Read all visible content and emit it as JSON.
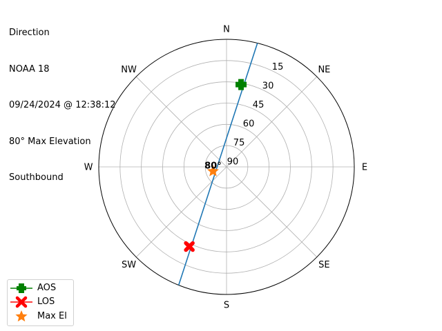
{
  "title_lines": [
    "Direction",
    "NOAA 18",
    "09/24/2024 @ 12:38:12",
    "80° Max Elevation",
    "Southbound"
  ],
  "chart_data": {
    "type": "polar-line",
    "theta_direction": "clockwise",
    "theta_zero": "N",
    "direction_labels": [
      "N",
      "NE",
      "E",
      "SE",
      "S",
      "SW",
      "W",
      "NW"
    ],
    "direction_azimuths": [
      0,
      45,
      90,
      135,
      180,
      225,
      270,
      315
    ],
    "radial_axis": "elevation (inverted, 90 at center, 0 at edge)",
    "radial_tick_labels": [
      "90",
      "75",
      "60",
      "45",
      "30",
      "15"
    ],
    "radial_tick_elevations": [
      90,
      75,
      60,
      45,
      30,
      15
    ],
    "grid": true,
    "track": {
      "color": "#1f77b4",
      "azimuth": [
        14,
        202
      ],
      "elevation": [
        0,
        0
      ]
    },
    "markers": [
      {
        "name": "AOS",
        "azimuth": 10,
        "elevation": 31,
        "marker": "plus-filled",
        "color": "#008000"
      },
      {
        "name": "LOS",
        "azimuth": 205,
        "elevation": 28,
        "marker": "x-filled",
        "color": "#ff0000"
      },
      {
        "name": "Max El",
        "azimuth": 252,
        "elevation": 80,
        "marker": "star",
        "color": "#ff7f0e"
      }
    ],
    "annotations": [
      {
        "text": "80°",
        "azimuth": 252,
        "elevation": 80
      }
    ],
    "legend": {
      "placement": "bottom-left",
      "entries": [
        "AOS",
        "LOS",
        "Max El"
      ]
    }
  }
}
